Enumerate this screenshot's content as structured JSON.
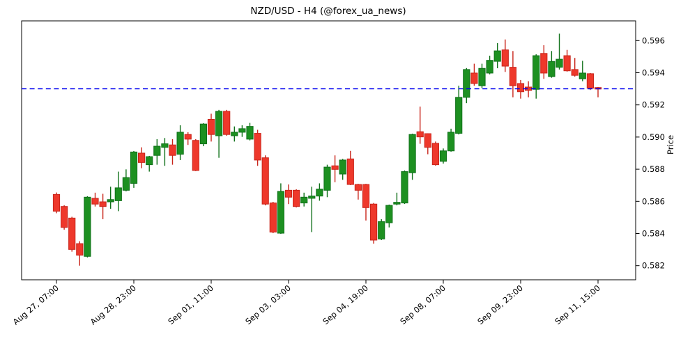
{
  "title": "NZD/USD - H4 (@forex_ua_news)",
  "chart_data": {
    "type": "candlestick",
    "title": "NZD/USD - H4 (@forex_ua_news)",
    "symbol": "NZD/USD",
    "timeframe": "H4",
    "watermark_handle": "@forex_ua_news",
    "ylabel": "Price",
    "ylim": [
      0.5811,
      0.5974
    ],
    "grid": false,
    "y_ticks": [
      0.582,
      0.584,
      0.586,
      0.588,
      0.59,
      0.592,
      0.594,
      0.596
    ],
    "x_tick_labels": [
      "Aug 27, 07:00",
      "Aug 28, 23:00",
      "Sep 01, 11:00",
      "Sep 03, 03:00",
      "Sep 04, 19:00",
      "Sep 08, 07:00",
      "Sep 09, 23:00",
      "Sep 11, 15:00"
    ],
    "x_tick_indices": [
      0,
      10,
      20,
      30,
      40,
      50,
      60,
      70
    ],
    "hline": {
      "price": 0.593,
      "color": "#0000ee",
      "style": "dashed"
    },
    "colors": {
      "up": "#1d9021",
      "up_edge": "#10711a",
      "down": "#ee382b",
      "down_edge": "#c9251b"
    },
    "candles": [
      [
        0.58643,
        0.58655,
        0.58526,
        0.58539
      ],
      [
        0.58568,
        0.58576,
        0.58424,
        0.58438
      ],
      [
        0.58496,
        0.58504,
        0.58287,
        0.58301
      ],
      [
        0.58337,
        0.58352,
        0.582,
        0.58265
      ],
      [
        0.58258,
        0.58632,
        0.58251,
        0.58626
      ],
      [
        0.58619,
        0.58654,
        0.58568,
        0.58583
      ],
      [
        0.58597,
        0.58647,
        0.58489,
        0.58568
      ],
      [
        0.58597,
        0.58691,
        0.58554,
        0.58611
      ],
      [
        0.58604,
        0.58785,
        0.58539,
        0.58684
      ],
      [
        0.58669,
        0.58799,
        0.58662,
        0.58748
      ],
      [
        0.58712,
        0.58913,
        0.58684,
        0.58907
      ],
      [
        0.589,
        0.58936,
        0.58806,
        0.58842
      ],
      [
        0.58828,
        0.58883,
        0.58785,
        0.58878
      ],
      [
        0.58886,
        0.58987,
        0.58828,
        0.58943
      ],
      [
        0.58936,
        0.58994,
        0.58821,
        0.58958
      ],
      [
        0.58951,
        0.58987,
        0.58828,
        0.58886
      ],
      [
        0.58893,
        0.59073,
        0.58857,
        0.5903
      ],
      [
        0.59016,
        0.5903,
        0.58951,
        0.58987
      ],
      [
        0.58979,
        0.58987,
        0.58788,
        0.58792
      ],
      [
        0.58958,
        0.59086,
        0.58943,
        0.59081
      ],
      [
        0.5911,
        0.59145,
        0.58972,
        0.59016
      ],
      [
        0.59008,
        0.59169,
        0.58871,
        0.5916
      ],
      [
        0.5916,
        0.59169,
        0.59008,
        0.59016
      ],
      [
        0.59008,
        0.59066,
        0.58972,
        0.5903
      ],
      [
        0.5903,
        0.59073,
        0.59001,
        0.59052
      ],
      [
        0.58987,
        0.59088,
        0.58979,
        0.59066
      ],
      [
        0.59023,
        0.59045,
        0.58821,
        0.58857
      ],
      [
        0.58871,
        0.58886,
        0.58575,
        0.58583
      ],
      [
        0.5859,
        0.58597,
        0.58402,
        0.58409
      ],
      [
        0.58402,
        0.58712,
        0.58398,
        0.58662
      ],
      [
        0.58669,
        0.58705,
        0.58583,
        0.58626
      ],
      [
        0.58669,
        0.58675,
        0.58562,
        0.58568
      ],
      [
        0.5859,
        0.58654,
        0.58568,
        0.58626
      ],
      [
        0.58619,
        0.58691,
        0.58409,
        0.58633
      ],
      [
        0.58633,
        0.58712,
        0.58604,
        0.58676
      ],
      [
        0.58669,
        0.58828,
        0.58626,
        0.58813
      ],
      [
        0.58821,
        0.58886,
        0.58719,
        0.58799
      ],
      [
        0.5877,
        0.58864,
        0.58734,
        0.58857
      ],
      [
        0.58864,
        0.58914,
        0.58701,
        0.58705
      ],
      [
        0.58705,
        0.58709,
        0.58611,
        0.58669
      ],
      [
        0.58705,
        0.58709,
        0.58481,
        0.58561
      ],
      [
        0.58583,
        0.5859,
        0.58337,
        0.58359
      ],
      [
        0.58366,
        0.58489,
        0.58359,
        0.58474
      ],
      [
        0.58467,
        0.5858,
        0.58438,
        0.58575
      ],
      [
        0.58583,
        0.58654,
        0.58575,
        0.58594
      ],
      [
        0.5859,
        0.58792,
        0.58584,
        0.58785
      ],
      [
        0.58778,
        0.59021,
        0.58734,
        0.59016
      ],
      [
        0.59033,
        0.59189,
        0.58958,
        0.59001
      ],
      [
        0.59021,
        0.59023,
        0.58893,
        0.58936
      ],
      [
        0.58961,
        0.58972,
        0.58822,
        0.58828
      ],
      [
        0.58849,
        0.58929,
        0.58835,
        0.58914
      ],
      [
        0.58914,
        0.59052,
        0.58909,
        0.5903
      ],
      [
        0.59023,
        0.59319,
        0.59016,
        0.59247
      ],
      [
        0.59247,
        0.59429,
        0.59211,
        0.5942
      ],
      [
        0.59398,
        0.59456,
        0.59319,
        0.59333
      ],
      [
        0.59319,
        0.59456,
        0.59304,
        0.59427
      ],
      [
        0.59398,
        0.59506,
        0.5939,
        0.59477
      ],
      [
        0.59471,
        0.59584,
        0.59428,
        0.59536
      ],
      [
        0.59542,
        0.59607,
        0.59405,
        0.59441
      ],
      [
        0.59434,
        0.59535,
        0.59247,
        0.59319
      ],
      [
        0.59333,
        0.59355,
        0.59239,
        0.59282
      ],
      [
        0.59311,
        0.59347,
        0.59247,
        0.5929
      ],
      [
        0.59297,
        0.59515,
        0.59239,
        0.59506
      ],
      [
        0.5952,
        0.59571,
        0.59362,
        0.59398
      ],
      [
        0.59376,
        0.59535,
        0.59369,
        0.5947
      ],
      [
        0.59434,
        0.59643,
        0.5942,
        0.59484
      ],
      [
        0.59506,
        0.59542,
        0.59407,
        0.59412
      ],
      [
        0.5942,
        0.59492,
        0.59376,
        0.59384
      ],
      [
        0.59362,
        0.59474,
        0.59347,
        0.59398
      ],
      [
        0.59394,
        0.59398,
        0.59293,
        0.59304
      ],
      [
        0.59308,
        0.59311,
        0.59247,
        0.59299
      ]
    ]
  }
}
